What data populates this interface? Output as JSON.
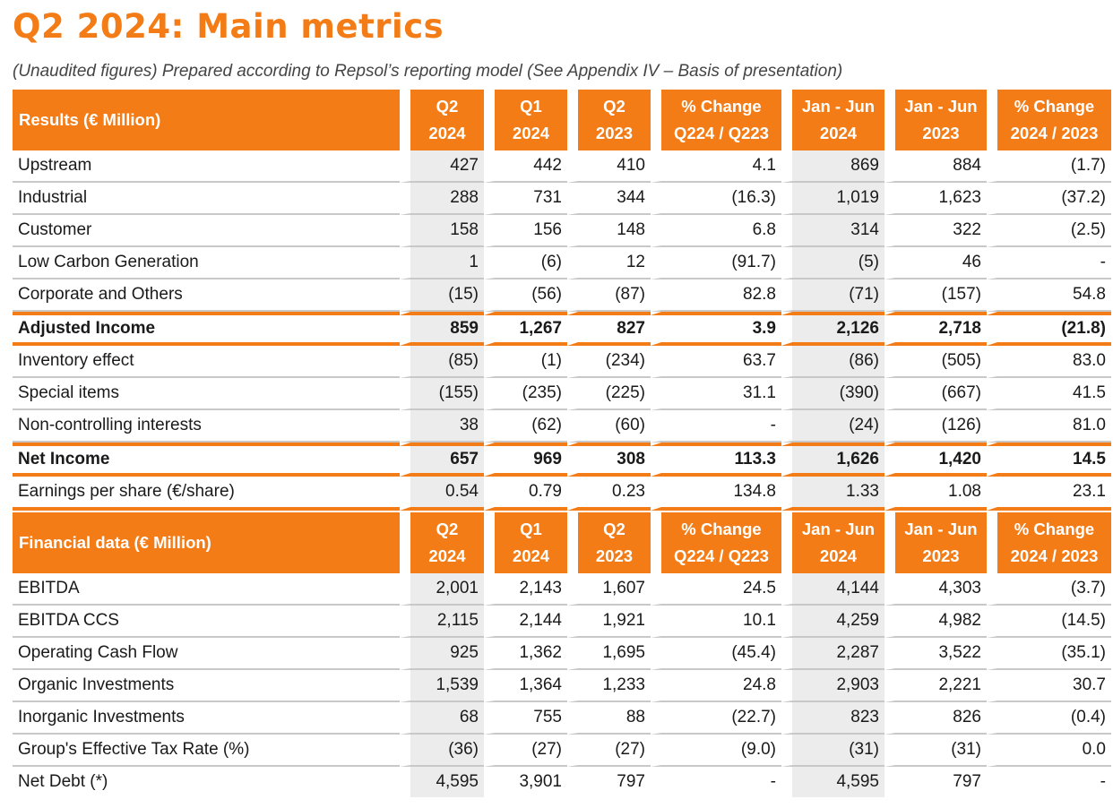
{
  "title": "Q2 2024: Main metrics",
  "subtitle": "(Unaudited figures) Prepared according to Repsol’s reporting model (See Appendix IV – Basis of presentation)",
  "colors": {
    "accent": "#f47c16",
    "shade": "#ececec"
  },
  "results": {
    "header": {
      "label": "Results (€ Million)",
      "cols": [
        [
          "Q2",
          "2024"
        ],
        [
          "Q1",
          "2024"
        ],
        [
          "Q2",
          "2023"
        ],
        [
          "% Change",
          "Q224 / Q223"
        ],
        [
          "Jan - Jun",
          "2024"
        ],
        [
          "Jan - Jun",
          "2023"
        ],
        [
          "% Change",
          "2024 / 2023"
        ]
      ]
    },
    "rows": [
      {
        "label": "Upstream",
        "values": [
          "427",
          "442",
          "410",
          "4.1",
          "869",
          "884",
          "(1.7)"
        ]
      },
      {
        "label": "Industrial",
        "values": [
          "288",
          "731",
          "344",
          "(16.3)",
          "1,019",
          "1,623",
          "(37.2)"
        ]
      },
      {
        "label": "Customer",
        "values": [
          "158",
          "156",
          "148",
          "6.8",
          "314",
          "322",
          "(2.5)"
        ]
      },
      {
        "label": "Low Carbon Generation",
        "values": [
          "1",
          "(6)",
          "12",
          "(91.7)",
          "(5)",
          "46",
          "-"
        ]
      },
      {
        "label": "Corporate and Others",
        "values": [
          "(15)",
          "(56)",
          "(87)",
          "82.8",
          "(71)",
          "(157)",
          "54.8"
        ]
      }
    ],
    "adjusted": {
      "label": "Adjusted Income",
      "values": [
        "859",
        "1,267",
        "827",
        "3.9",
        "2,126",
        "2,718",
        "(21.8)"
      ]
    },
    "rows2": [
      {
        "label": "Inventory effect",
        "values": [
          "(85)",
          "(1)",
          "(234)",
          "63.7",
          "(86)",
          "(505)",
          "83.0"
        ]
      },
      {
        "label": "Special items",
        "values": [
          "(155)",
          "(235)",
          "(225)",
          "31.1",
          "(390)",
          "(667)",
          "41.5"
        ]
      },
      {
        "label": "Non-controlling interests",
        "values": [
          "38",
          "(62)",
          "(60)",
          "-",
          "(24)",
          "(126)",
          "81.0"
        ]
      }
    ],
    "net": {
      "label": "Net Income",
      "values": [
        "657",
        "969",
        "308",
        "113.3",
        "1,626",
        "1,420",
        "14.5"
      ]
    },
    "eps": {
      "label": "Earnings per share (€/share)",
      "values": [
        "0.54",
        "0.79",
        "0.23",
        "134.8",
        "1.33",
        "1.08",
        "23.1"
      ]
    }
  },
  "financial": {
    "header": {
      "label": "Financial data (€ Million)",
      "cols": [
        [
          "Q2",
          "2024"
        ],
        [
          "Q1",
          "2024"
        ],
        [
          "Q2",
          "2023"
        ],
        [
          "% Change",
          "Q224 / Q223"
        ],
        [
          "Jan - Jun",
          "2024"
        ],
        [
          "Jan - Jun",
          "2023"
        ],
        [
          "% Change",
          "2024 / 2023"
        ]
      ]
    },
    "rows": [
      {
        "label": "EBITDA",
        "values": [
          "2,001",
          "2,143",
          "1,607",
          "24.5",
          "4,144",
          "4,303",
          "(3.7)"
        ]
      },
      {
        "label": "EBITDA CCS",
        "values": [
          "2,115",
          "2,144",
          "1,921",
          "10.1",
          "4,259",
          "4,982",
          "(14.5)"
        ]
      },
      {
        "label": "Operating Cash Flow",
        "values": [
          "925",
          "1,362",
          "1,695",
          "(45.4)",
          "2,287",
          "3,522",
          "(35.1)"
        ]
      },
      {
        "label": "Organic Investments",
        "values": [
          "1,539",
          "1,364",
          "1,233",
          "24.8",
          "2,903",
          "2,221",
          "30.7"
        ]
      },
      {
        "label": "Inorganic Investments",
        "values": [
          "68",
          "755",
          "88",
          "(22.7)",
          "823",
          "826",
          "(0.4)"
        ]
      },
      {
        "label": "Group's Effective Tax Rate (%)",
        "values": [
          "(36)",
          "(27)",
          "(27)",
          "(9.0)",
          "(31)",
          "(31)",
          "0.0"
        ]
      },
      {
        "label": "Net Debt (*)",
        "values": [
          "4,595",
          "3,901",
          "797",
          "-",
          "4,595",
          "797",
          "-"
        ]
      }
    ]
  }
}
